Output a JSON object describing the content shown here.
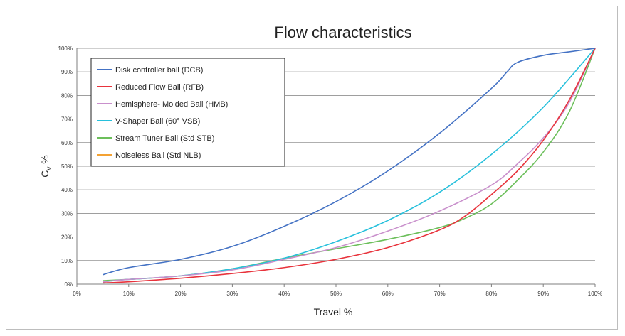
{
  "chart_data": {
    "type": "line",
    "title": "Flow characteristics",
    "xlabel": "Travel %",
    "ylabel": "Cv %",
    "xlim": [
      0,
      100
    ],
    "ylim": [
      0,
      100
    ],
    "x_ticks": [
      0,
      10,
      20,
      30,
      40,
      50,
      60,
      70,
      80,
      90,
      100
    ],
    "y_ticks": [
      0,
      10,
      20,
      30,
      40,
      50,
      60,
      70,
      80,
      90,
      100
    ],
    "x_tick_labels": [
      "0%",
      "10%",
      "20%",
      "30%",
      "40%",
      "50%",
      "60%",
      "70%",
      "80%",
      "90%",
      "100%"
    ],
    "y_tick_labels": [
      "0%",
      "10%",
      "20%",
      "30%",
      "40%",
      "50%",
      "60%",
      "70%",
      "80%",
      "90%",
      "100%"
    ],
    "grid": "horizontal",
    "legend_position": "top-left",
    "series": [
      {
        "name": "Disk controller ball (DCB)",
        "color": "#4472c4",
        "x": [
          5,
          10,
          20,
          30,
          40,
          50,
          60,
          70,
          80,
          83,
          85,
          90,
          95,
          100
        ],
        "y": [
          4,
          7,
          10.5,
          16,
          24.5,
          35,
          48,
          64,
          83,
          90,
          94,
          97,
          98.5,
          100
        ]
      },
      {
        "name": "Reduced Flow Ball (RFB)",
        "color": "#e8333c",
        "x": [
          5,
          10,
          20,
          30,
          40,
          50,
          60,
          70,
          75,
          80,
          85,
          90,
          95,
          100
        ],
        "y": [
          0.5,
          1,
          2.5,
          4.5,
          7,
          10.5,
          15.5,
          23,
          29,
          38,
          48,
          61,
          78,
          100
        ]
      },
      {
        "name": "Hemisphere- Molded Ball (HMB)",
        "color": "#c990cc",
        "x": [
          5,
          10,
          20,
          30,
          40,
          50,
          60,
          70,
          80,
          85,
          90,
          95,
          100
        ],
        "y": [
          1,
          2,
          3.5,
          6,
          10.5,
          15.5,
          22.5,
          31,
          42,
          51,
          62,
          77,
          100
        ]
      },
      {
        "name": "V-Shaper Ball (60° VSB)",
        "color": "#27c0dc",
        "x": [
          5,
          10,
          20,
          30,
          40,
          50,
          60,
          70,
          80,
          90,
          100
        ],
        "y": [
          1,
          2,
          3.5,
          6.5,
          11,
          18,
          27,
          39,
          55,
          75,
          100
        ]
      },
      {
        "name": "Stream Tuner Ball (Std STB)",
        "color": "#6cbf5b",
        "x": [
          5,
          10,
          20,
          30,
          40,
          50,
          60,
          70,
          75,
          80,
          85,
          90,
          95,
          100
        ],
        "y": [
          1.5,
          2,
          3.5,
          6.5,
          11,
          15,
          19,
          24,
          28,
          34,
          44,
          56,
          73,
          100
        ]
      },
      {
        "name": "Noiseless Ball (Std NLB)",
        "color": "#f4a233",
        "x": [],
        "y": []
      }
    ]
  }
}
